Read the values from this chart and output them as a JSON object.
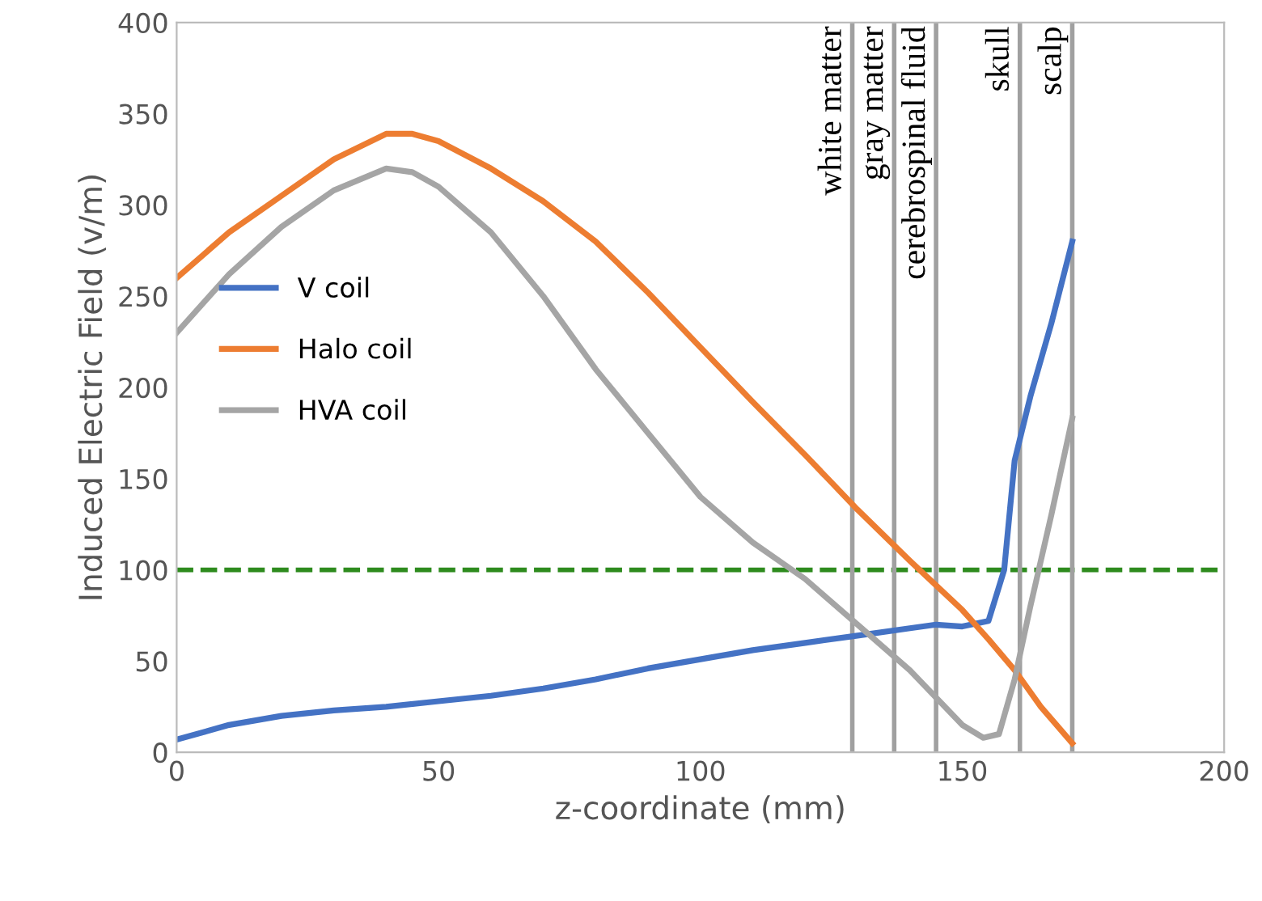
{
  "chart_data": {
    "type": "line",
    "xlabel": "z-coordinate (mm)",
    "ylabel": "Induced Electric Field (v/m)",
    "xlim": [
      0,
      200
    ],
    "ylim": [
      0,
      400
    ],
    "xticks": [
      0,
      50,
      100,
      150,
      200
    ],
    "yticks": [
      0,
      50,
      100,
      150,
      200,
      250,
      300,
      350,
      400
    ],
    "grid": false,
    "legend": "left",
    "marker": "none",
    "line_style": "solid",
    "series": [
      {
        "name": "V coil",
        "color": "#4472c4",
        "x": [
          0,
          10,
          20,
          30,
          40,
          50,
          60,
          70,
          80,
          90,
          100,
          110,
          120,
          130,
          140,
          145,
          150,
          155,
          158,
          160,
          163,
          167,
          171
        ],
        "values": [
          7,
          15,
          20,
          23,
          25,
          28,
          31,
          35,
          40,
          46,
          51,
          56,
          60,
          64,
          68,
          70,
          69,
          72,
          100,
          160,
          195,
          235,
          280
        ]
      },
      {
        "name": "Halo coil",
        "color": "#ed7d31",
        "x": [
          0,
          10,
          20,
          30,
          40,
          45,
          50,
          60,
          70,
          80,
          90,
          100,
          110,
          120,
          130,
          140,
          150,
          155,
          160,
          165,
          171
        ],
        "values": [
          260,
          285,
          305,
          325,
          339,
          339,
          335,
          320,
          302,
          280,
          252,
          222,
          192,
          163,
          133,
          105,
          78,
          62,
          45,
          25,
          5
        ]
      },
      {
        "name": "HVA coil",
        "color": "#a5a5a5",
        "x": [
          0,
          10,
          20,
          30,
          40,
          45,
          50,
          60,
          70,
          80,
          90,
          100,
          110,
          120,
          130,
          140,
          145,
          150,
          154,
          157,
          160,
          163,
          167,
          171
        ],
        "values": [
          230,
          262,
          288,
          308,
          320,
          318,
          310,
          285,
          250,
          210,
          175,
          140,
          115,
          95,
          70,
          45,
          30,
          15,
          8,
          10,
          40,
          80,
          130,
          183
        ]
      }
    ],
    "ref_lines": [
      {
        "axis": "y",
        "value": 100,
        "color": "#2e8b1e",
        "line_style": "dashed"
      },
      {
        "axis": "x",
        "value": 129,
        "label": "white matter",
        "color": "#a0a0a0",
        "line_style": "solid"
      },
      {
        "axis": "x",
        "value": 137,
        "label": "gray matter",
        "color": "#a0a0a0",
        "line_style": "solid"
      },
      {
        "axis": "x",
        "value": 145,
        "label": "cerebrospinal fluid",
        "color": "#a0a0a0",
        "line_style": "solid"
      },
      {
        "axis": "x",
        "value": 161,
        "label": "skull",
        "color": "#a0a0a0",
        "line_style": "solid"
      },
      {
        "axis": "x",
        "value": 171,
        "label": "scalp",
        "color": "#a0a0a0",
        "line_style": "solid"
      }
    ]
  }
}
